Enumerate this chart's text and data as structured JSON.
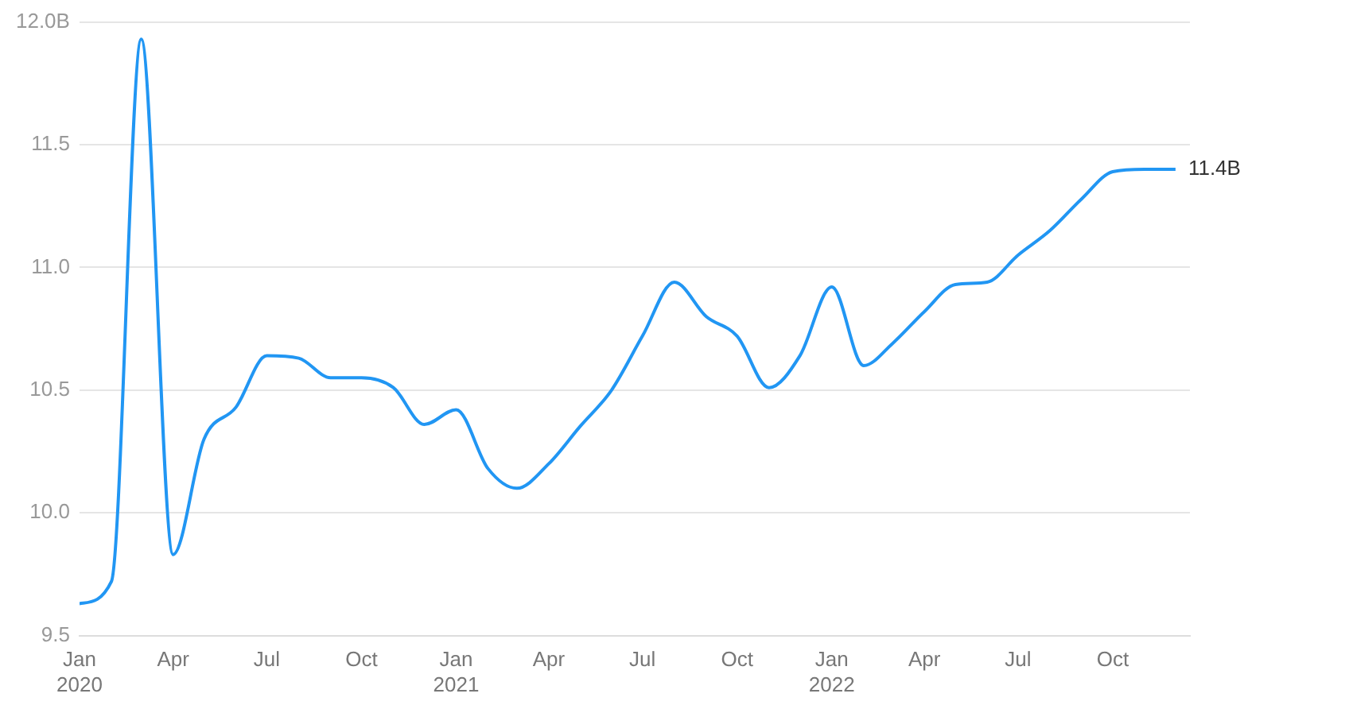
{
  "chart_data": {
    "type": "line",
    "marker": "none",
    "grid": "y",
    "legend": false,
    "x": [
      "2020-01",
      "2020-02",
      "2020-03",
      "2020-04",
      "2020-05",
      "2020-06",
      "2020-07",
      "2020-08",
      "2020-09",
      "2020-10",
      "2020-11",
      "2020-12",
      "2021-01",
      "2021-02",
      "2021-03",
      "2021-04",
      "2021-05",
      "2021-06",
      "2021-07",
      "2021-08",
      "2021-09",
      "2021-10",
      "2021-11",
      "2021-12",
      "2022-01",
      "2022-02",
      "2022-03",
      "2022-04",
      "2022-05",
      "2022-06",
      "2022-07",
      "2022-08",
      "2022-09",
      "2022-10",
      "2022-11",
      "2022-12"
    ],
    "series": [
      {
        "color": "#2196f3",
        "values": [
          9.63,
          9.72,
          11.93,
          9.83,
          10.3,
          10.43,
          10.64,
          10.63,
          10.55,
          10.55,
          10.51,
          10.36,
          10.42,
          10.18,
          10.1,
          10.2,
          10.35,
          10.5,
          10.72,
          10.94,
          10.8,
          10.72,
          10.51,
          10.64,
          10.92,
          10.6,
          10.69,
          10.82,
          10.93,
          10.94,
          11.05,
          11.15,
          11.28,
          11.39,
          11.4,
          11.4
        ],
        "value_labels": [
          null,
          null,
          null,
          null,
          null,
          null,
          null,
          null,
          null,
          null,
          null,
          null,
          null,
          null,
          null,
          null,
          null,
          null,
          null,
          null,
          null,
          null,
          null,
          null,
          null,
          null,
          null,
          null,
          null,
          null,
          null,
          null,
          null,
          null,
          null,
          "11.4B"
        ]
      }
    ],
    "xlim": [
      "2020-01-01",
      "2022-12-15"
    ],
    "xticks": [
      {
        "value": "2020-01",
        "label": "Jan 2020"
      },
      {
        "value": "2020-04",
        "label": "Apr"
      },
      {
        "value": "2020-07",
        "label": "Jul"
      },
      {
        "value": "2020-10",
        "label": "Oct"
      },
      {
        "value": "2021-01",
        "label": "Jan 2021"
      },
      {
        "value": "2021-04",
        "label": "Apr"
      },
      {
        "value": "2021-07",
        "label": "Jul"
      },
      {
        "value": "2021-10",
        "label": "Oct"
      },
      {
        "value": "2022-01",
        "label": "Jan 2022"
      },
      {
        "value": "2022-04",
        "label": "Apr"
      },
      {
        "value": "2022-07",
        "label": "Jul"
      },
      {
        "value": "2022-10",
        "label": "Oct"
      }
    ],
    "ylim": [
      9.5,
      12.0
    ],
    "yticks": [
      {
        "value": 9.5,
        "label": "9.5"
      },
      {
        "value": 10,
        "label": "10.0"
      },
      {
        "value": 10.5,
        "label": "10.5"
      },
      {
        "value": 11,
        "label": "11.0"
      },
      {
        "value": 11.5,
        "label": "11.5"
      },
      {
        "value": 12,
        "label": "12.0B"
      }
    ]
  }
}
